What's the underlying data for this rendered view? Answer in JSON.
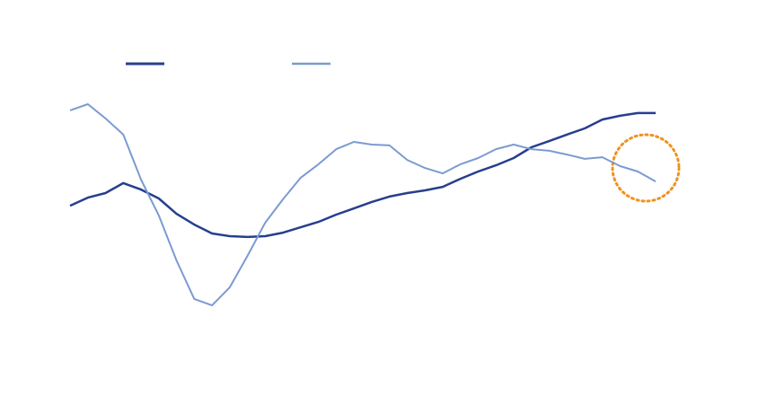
{
  "chart_data": {
    "type": "line",
    "ylim": [
      0,
      100
    ],
    "series": [
      {
        "color": "#263f8e",
        "width": 2.5,
        "values": [
          50.3,
          53.3,
          55,
          58.7,
          56.3,
          53,
          47.3,
          43.3,
          40,
          39,
          38.7,
          39,
          40.3,
          42.3,
          44.3,
          47,
          49.3,
          51.7,
          53.7,
          55,
          56,
          57.3,
          60.3,
          63,
          65.3,
          68,
          72,
          74.3,
          76.7,
          79,
          82.3,
          83.7,
          84.7,
          84.7
        ]
      },
      {
        "color": "#7b9bd1",
        "width": 2,
        "values": [
          85.7,
          88,
          82.7,
          76.7,
          60,
          46.7,
          30,
          15.7,
          13.3,
          20,
          31.7,
          44,
          52.7,
          60.7,
          65.7,
          71.3,
          74,
          73,
          72.7,
          67.3,
          64.3,
          62.3,
          65.7,
          68,
          71.3,
          73,
          71.3,
          70.7,
          69.3,
          67.7,
          68.3,
          65,
          63,
          59.3
        ]
      }
    ]
  }
}
